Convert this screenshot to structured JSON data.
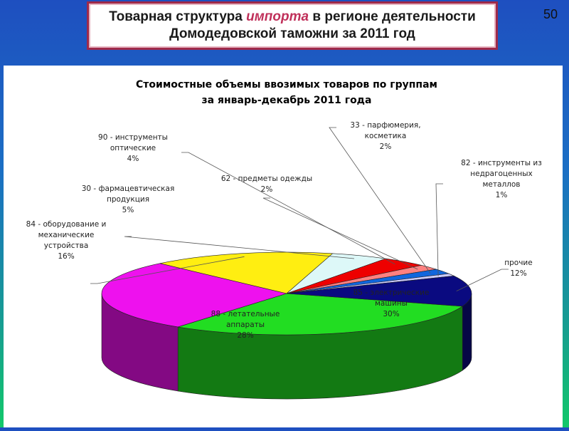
{
  "slide": {
    "title_prefix": "Товарная структура ",
    "title_accent": "импорта",
    "title_suffix": " в регионе деятельности",
    "title_line2": "Домодедовской таможни за 2011 год",
    "page_number": "50"
  },
  "chart_data": {
    "type": "pie",
    "title_line1": "Стоимостные объемы ввозимых товаров по группам",
    "title_line2": "за январь-декабрь 2011 года",
    "three_d": true,
    "slices": [
      {
        "label_lines": [
          "85 - электрические",
          "машины"
        ],
        "pct": "30%",
        "value": 30,
        "color": "#22dd22"
      },
      {
        "label_lines": [
          "88 - летательные",
          "аппараты"
        ],
        "pct": "28%",
        "value": 28,
        "color": "#ee11ee"
      },
      {
        "label_lines": [
          "84 - оборудование и",
          "механические",
          "устройства"
        ],
        "pct": "16%",
        "value": 16,
        "color": "#ffee11"
      },
      {
        "label_lines": [
          "30 - фармацевтическая",
          "продукция"
        ],
        "pct": "5%",
        "value": 5,
        "color": "#ddf8f8"
      },
      {
        "label_lines": [
          "90 - инструменты",
          "оптические"
        ],
        "pct": "4%",
        "value": 4,
        "color": "#ee0000"
      },
      {
        "label_lines": [
          "62 - предметы одежды"
        ],
        "pct": "2%",
        "value": 2,
        "color": "#ff8080"
      },
      {
        "label_lines": [
          "33 - парфюмерия,",
          "косметика"
        ],
        "pct": "2%",
        "value": 2,
        "color": "#1166dd"
      },
      {
        "label_lines": [
          "82 - инструменты из",
          "недрагоценных",
          "металлов"
        ],
        "pct": "1%",
        "value": 1,
        "color": "#ccccff"
      },
      {
        "label_lines": [
          "прочие"
        ],
        "pct": "12%",
        "value": 12,
        "color": "#0a0a80"
      }
    ]
  }
}
